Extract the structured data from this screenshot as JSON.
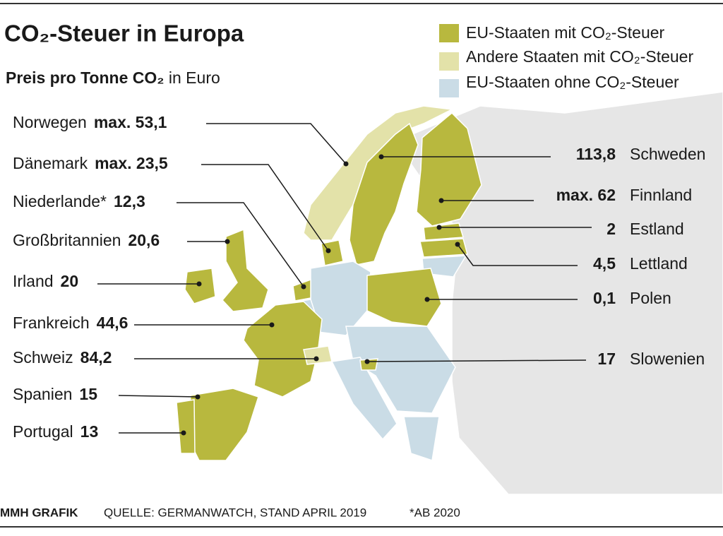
{
  "header": {
    "title": "CO₂-Steuer in Europa",
    "subtitle_bold": "Preis pro Tonne CO₂",
    "subtitle_unit": "in Euro"
  },
  "legend": [
    "EU-Staaten mit CO₂-Steuer",
    "Andere Staaten mit CO₂-Steuer",
    "EU-Staaten ohne CO₂-Steuer"
  ],
  "left_labels": [
    {
      "country": "Norwegen",
      "value": "max. 53,1"
    },
    {
      "country": "Dänemark",
      "value": "max. 23,5"
    },
    {
      "country": "Niederlande*",
      "value": "12,3"
    },
    {
      "country": "Großbritannien",
      "value": "20,6"
    },
    {
      "country": "Irland",
      "value": "20"
    },
    {
      "country": "Frankreich",
      "value": "44,6"
    },
    {
      "country": "Schweiz",
      "value": "84,2"
    },
    {
      "country": "Spanien",
      "value": "15"
    },
    {
      "country": "Portugal",
      "value": "13"
    }
  ],
  "right_labels": [
    {
      "country": "Schweden",
      "value": "113,8"
    },
    {
      "country": "Finnland",
      "value": "max. 62"
    },
    {
      "country": "Estland",
      "value": "2"
    },
    {
      "country": "Lettland",
      "value": "4,5"
    },
    {
      "country": "Polen",
      "value": "0,1"
    },
    {
      "country": "Slowenien",
      "value": "17"
    }
  ],
  "footer": {
    "brand": "MMH GRAFIK",
    "source": "QUELLE: GERMANWATCH, STAND APRIL 2019",
    "note": "*AB 2020"
  }
}
